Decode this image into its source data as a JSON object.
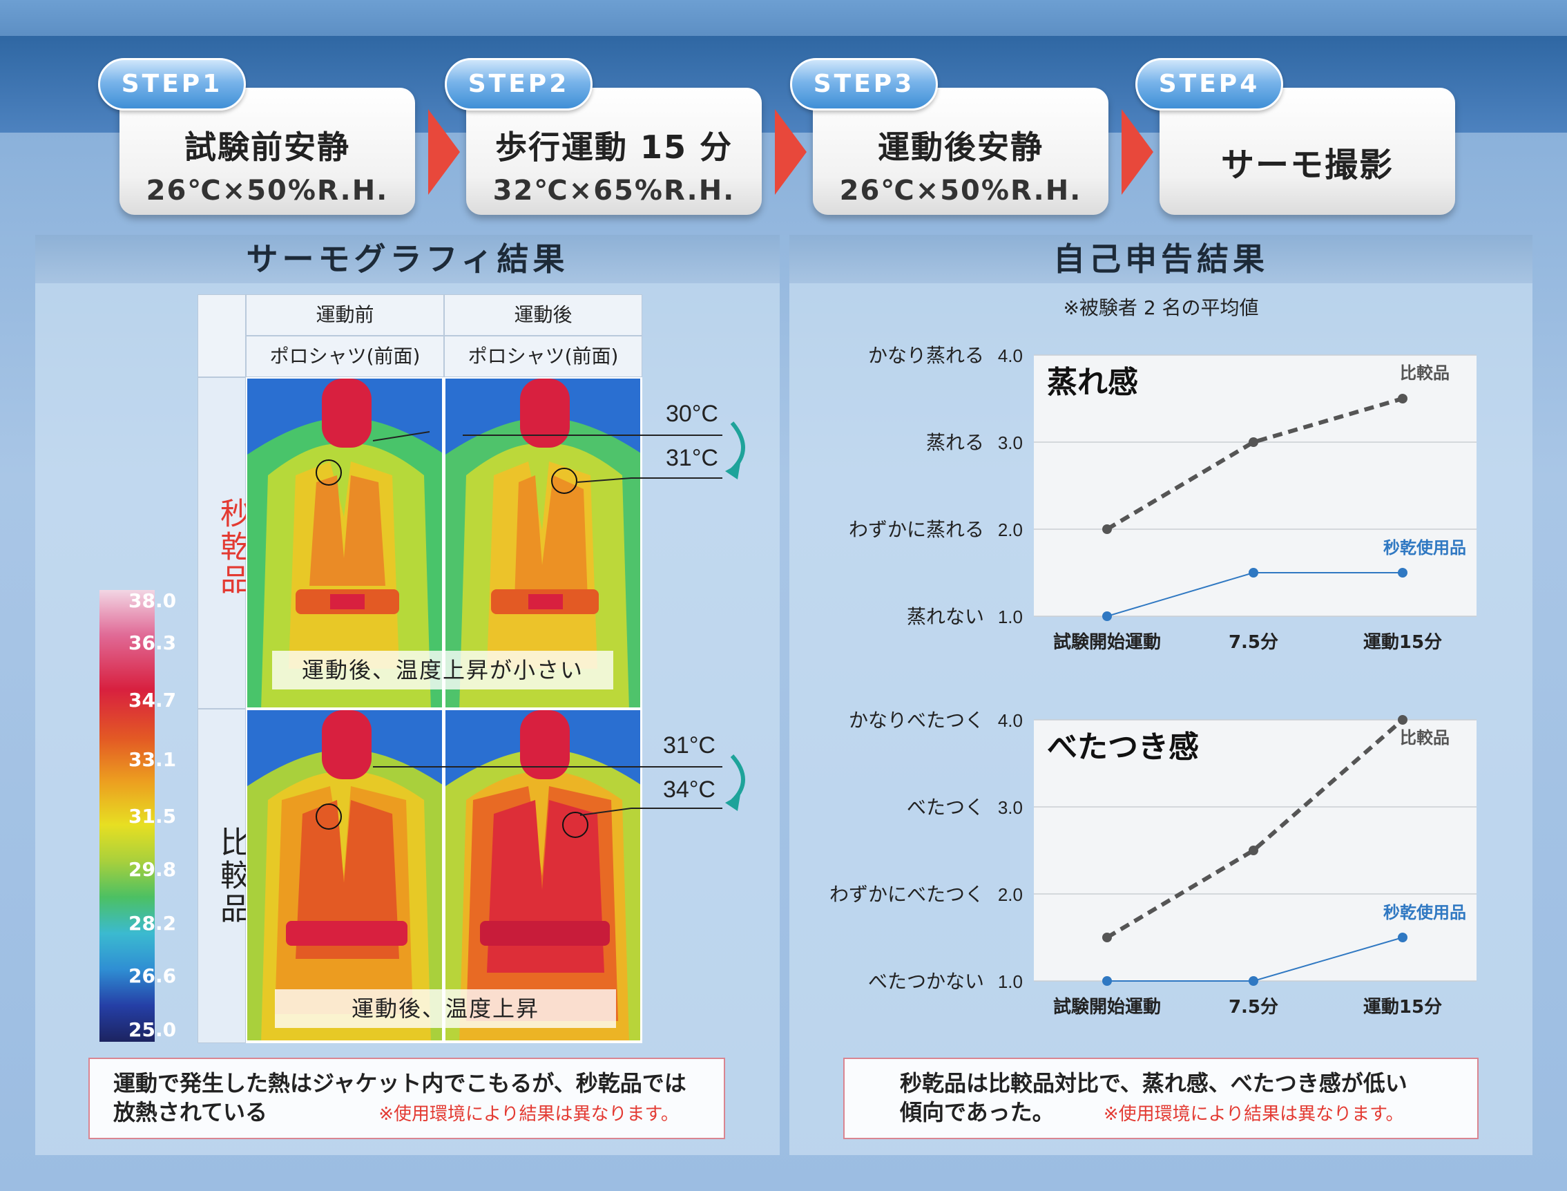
{
  "steps": [
    {
      "badge": "STEP1",
      "title": "試験前安静",
      "sub": "26℃×50%R.H."
    },
    {
      "badge": "STEP2",
      "title": "歩行運動 15 分",
      "sub": "32℃×65%R.H."
    },
    {
      "badge": "STEP3",
      "title": "運動後安静",
      "sub": "26℃×50%R.H."
    },
    {
      "badge": "STEP4",
      "title": "サーモ撮影",
      "sub": ""
    }
  ],
  "thermo": {
    "heading": "サーモグラフィ結果",
    "col_before": "運動前",
    "col_after": "運動後",
    "garment": "ポロシャツ(前面)",
    "row1_label": "秒乾品",
    "row2_label": "比較品",
    "row1_caption": "運動後、温度上昇が小さい",
    "row2_caption": "運動後、温度上昇",
    "row1_t1": "30°C",
    "row1_t2": "31°C",
    "row2_t1": "31°C",
    "row2_t2": "34°C",
    "scale": [
      "38.0",
      "36.3",
      "34.7",
      "33.1",
      "31.5",
      "29.8",
      "28.2",
      "26.6",
      "25.0"
    ],
    "note_main_1": "運動で発生した熱はジャケット内でこもるが、秒乾品では",
    "note_main_2": "放熱されている",
    "note_red": "※使用環境により結果は異なります。"
  },
  "survey": {
    "heading": "自己申告結果",
    "subnote": "※被験者 2 名の平均値",
    "note_main_1": "秒乾品は比較品対比で、蒸れ感、べたつき感が低い",
    "note_main_2": "傾向であった。",
    "note_red": "※使用環境により結果は異なります。"
  },
  "colors": {
    "comparison": "#555555",
    "product": "#2f78c2",
    "accent_red": "#e33a32"
  },
  "chart_data": [
    {
      "type": "line",
      "title": "蒸れ感",
      "categories": [
        "試験開始運動",
        "7.5分",
        "運動15分"
      ],
      "y_ticks": [
        "1.0",
        "2.0",
        "3.0",
        "4.0"
      ],
      "y_tick_labels": [
        "蒸れない",
        "わずかに蒸れる",
        "蒸れる",
        "かなり蒸れる"
      ],
      "ylim": [
        1.0,
        4.0
      ],
      "series": [
        {
          "name": "比較品",
          "values": [
            2.0,
            3.0,
            3.5
          ],
          "style": "dashed"
        },
        {
          "name": "秒乾使用品",
          "values": [
            1.0,
            1.5,
            1.5
          ],
          "style": "solid"
        }
      ]
    },
    {
      "type": "line",
      "title": "べたつき感",
      "categories": [
        "試験開始運動",
        "7.5分",
        "運動15分"
      ],
      "y_ticks": [
        "1.0",
        "2.0",
        "3.0",
        "4.0"
      ],
      "y_tick_labels": [
        "べたつかない",
        "わずかにべたつく",
        "べたつく",
        "かなりべたつく"
      ],
      "ylim": [
        1.0,
        4.0
      ],
      "series": [
        {
          "name": "比較品",
          "values": [
            1.5,
            2.5,
            4.0
          ],
          "style": "dashed"
        },
        {
          "name": "秒乾使用品",
          "values": [
            1.0,
            1.0,
            1.5
          ],
          "style": "solid"
        }
      ]
    }
  ]
}
